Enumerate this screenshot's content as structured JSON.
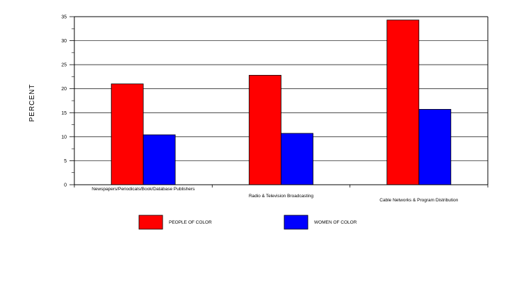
{
  "chart_data": {
    "type": "bar",
    "title": "",
    "xlabel": "",
    "ylabel": "PERCENT",
    "ylim": [
      0,
      35
    ],
    "yticks": [
      "0",
      "5",
      "10",
      "15",
      "20",
      "25",
      "30",
      "35"
    ],
    "grid": true,
    "legend_position": "bottom",
    "categories": [
      "Newspapers/Periodicals/Book/Database Publishers",
      "Radio & Television Broadcasting",
      "Cable Networks & Program Distribution"
    ],
    "series": [
      {
        "name": "PEOPLE OF COLOR",
        "color": "#ff0000",
        "values": [
          21.0,
          22.8,
          34.3
        ]
      },
      {
        "name": "WOMEN OF COLOR",
        "color": "#0000ff",
        "values": [
          10.4,
          10.7,
          15.7
        ]
      }
    ]
  }
}
